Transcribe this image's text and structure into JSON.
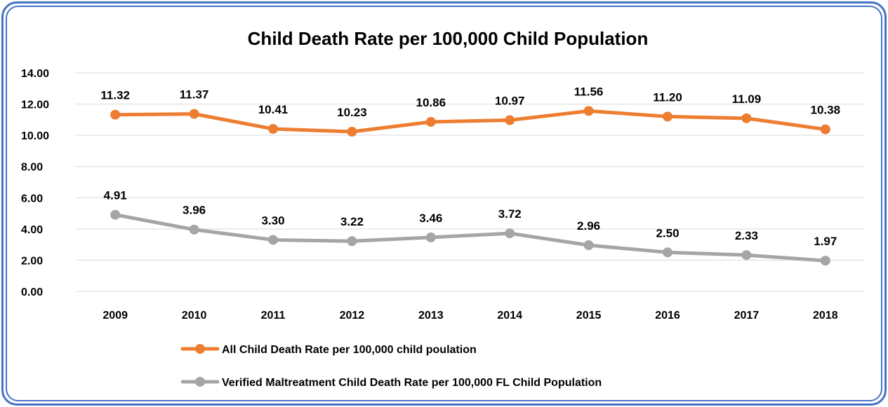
{
  "chart_data": {
    "type": "line",
    "title": "Child Death Rate per 100,000 Child Population",
    "xlabel": "",
    "ylabel": "",
    "categories": [
      "2009",
      "2010",
      "2011",
      "2012",
      "2013",
      "2014",
      "2015",
      "2016",
      "2017",
      "2018"
    ],
    "ylim": [
      0,
      14
    ],
    "yticks": [
      "0.00",
      "2.00",
      "4.00",
      "6.00",
      "8.00",
      "10.00",
      "12.00",
      "14.00"
    ],
    "grid": true,
    "legend_position": "bottom",
    "series": [
      {
        "name": "All Child Death Rate per 100,000 child poulation",
        "color": "#ed7d31",
        "values": [
          11.32,
          11.37,
          10.41,
          10.23,
          10.86,
          10.97,
          11.56,
          11.2,
          11.09,
          10.38
        ],
        "labels": [
          "11.32",
          "11.37",
          "10.41",
          "10.23",
          "10.86",
          "10.97",
          "11.56",
          "11.20",
          "11.09",
          "10.38"
        ]
      },
      {
        "name": "Verified Maltreatment Child Death Rate per 100,000 FL Child Population",
        "color": "#a5a5a5",
        "values": [
          4.91,
          3.96,
          3.3,
          3.22,
          3.46,
          3.72,
          2.96,
          2.5,
          2.33,
          1.97
        ],
        "labels": [
          "4.91",
          "3.96",
          "3.30",
          "3.22",
          "3.46",
          "3.72",
          "2.96",
          "2.50",
          "2.33",
          "1.97"
        ]
      }
    ]
  },
  "colors": {
    "border": "#4472c4",
    "grid": "#d9d9d9"
  }
}
